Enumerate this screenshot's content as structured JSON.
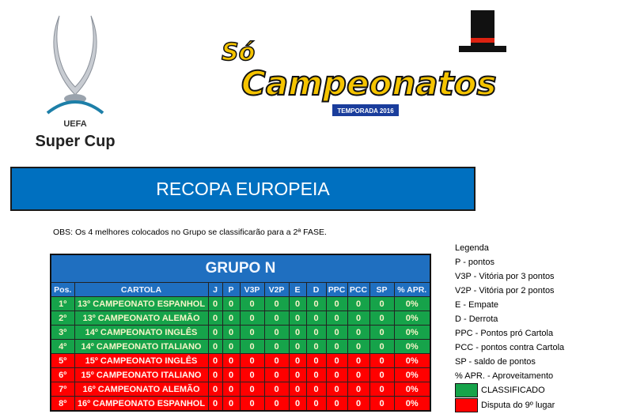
{
  "logos": {
    "left": {
      "line1": "UEFA",
      "line2": "Super Cup"
    },
    "right": {
      "line1": "Só",
      "line2": "Campeonatos",
      "badge": "TEMPORADA 2016"
    }
  },
  "title": "RECOPA EUROPEIA",
  "obs": "OBS: Os 4 melhores colocados no Grupo se classificarão para a 2ª FASE.",
  "table": {
    "group": "GRUPO N",
    "headers": [
      "Pos.",
      "CARTOLA",
      "J",
      "P",
      "V3P",
      "V2P",
      "E",
      "D",
      "PPC",
      "PCC",
      "SP",
      "% APR."
    ],
    "rows": [
      {
        "pos": "1º",
        "name": "13º CAMPEONATO ESPANHOL",
        "j": "0",
        "p": "0",
        "v3p": "0",
        "v2p": "0",
        "e": "0",
        "d": "0",
        "ppc": "0",
        "pcc": "0",
        "sp": "0",
        "apr": "0%",
        "status": "classificado"
      },
      {
        "pos": "2º",
        "name": "13º CAMPEONATO ALEMÃO",
        "j": "0",
        "p": "0",
        "v3p": "0",
        "v2p": "0",
        "e": "0",
        "d": "0",
        "ppc": "0",
        "pcc": "0",
        "sp": "0",
        "apr": "0%",
        "status": "classificado"
      },
      {
        "pos": "3º",
        "name": "14º CAMPEONATO INGLÊS",
        "j": "0",
        "p": "0",
        "v3p": "0",
        "v2p": "0",
        "e": "0",
        "d": "0",
        "ppc": "0",
        "pcc": "0",
        "sp": "0",
        "apr": "0%",
        "status": "classificado"
      },
      {
        "pos": "4º",
        "name": "14º CAMPEONATO ITALIANO",
        "j": "0",
        "p": "0",
        "v3p": "0",
        "v2p": "0",
        "e": "0",
        "d": "0",
        "ppc": "0",
        "pcc": "0",
        "sp": "0",
        "apr": "0%",
        "status": "classificado"
      },
      {
        "pos": "5º",
        "name": "15º CAMPEONATO  INGLÊS",
        "j": "0",
        "p": "0",
        "v3p": "0",
        "v2p": "0",
        "e": "0",
        "d": "0",
        "ppc": "0",
        "pcc": "0",
        "sp": "0",
        "apr": "0%",
        "status": "disputa"
      },
      {
        "pos": "6º",
        "name": "15º CAMPEONATO ITALIANO",
        "j": "0",
        "p": "0",
        "v3p": "0",
        "v2p": "0",
        "e": "0",
        "d": "0",
        "ppc": "0",
        "pcc": "0",
        "sp": "0",
        "apr": "0%",
        "status": "disputa"
      },
      {
        "pos": "7º",
        "name": "16º CAMPEONATO ALEMÃO",
        "j": "0",
        "p": "0",
        "v3p": "0",
        "v2p": "0",
        "e": "0",
        "d": "0",
        "ppc": "0",
        "pcc": "0",
        "sp": "0",
        "apr": "0%",
        "status": "disputa"
      },
      {
        "pos": "8º",
        "name": "16º CAMPEONATO ESPANHOL",
        "j": "0",
        "p": "0",
        "v3p": "0",
        "v2p": "0",
        "e": "0",
        "d": "0",
        "ppc": "0",
        "pcc": "0",
        "sp": "0",
        "apr": "0%",
        "status": "disputa"
      }
    ]
  },
  "legend": {
    "title": "Legenda",
    "items": [
      "P - pontos",
      "V3P - Vitória por 3 pontos",
      "V2P - Vitória por 2 pontos",
      "E - Empate",
      "D - Derrota",
      "PPC - Pontos pró Cartola",
      "PCC - pontos contra Cartola",
      "SP - saldo de pontos",
      "% APR. - Aproveitamento"
    ],
    "swatches": [
      {
        "label": "CLASSIFICADO",
        "color": "#16a34a"
      },
      {
        "label": "Disputa do 9º lugar",
        "color": "#ff0000"
      }
    ]
  },
  "colors": {
    "blue": "#0070c0",
    "green": "#16a34a",
    "red": "#ff0000"
  }
}
